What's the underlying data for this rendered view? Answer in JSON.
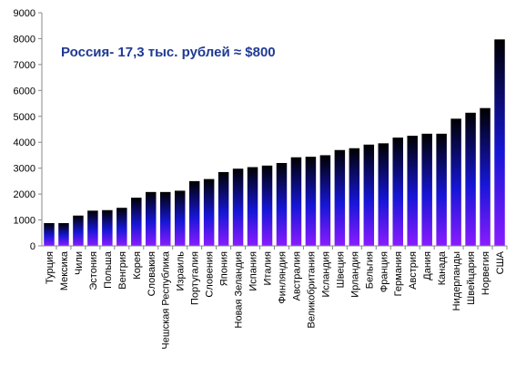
{
  "chart_data": {
    "type": "bar",
    "title": "",
    "xlabel": "",
    "ylabel": "",
    "annotation": "Россия- 17,3 тыс. рублей ≈ $800",
    "ylim": [
      0,
      9000
    ],
    "yticks": [
      0,
      1000,
      2000,
      3000,
      4000,
      5000,
      6000,
      7000,
      8000,
      9000
    ],
    "grid": false,
    "legend": "none",
    "categories": [
      "Турция",
      "Мексика",
      "Чили",
      "Эстония",
      "Польша",
      "Венгрия",
      "Корея",
      "Словакия",
      "Чешская Республика",
      "Израиль",
      "Португалия",
      "Словения",
      "Япония",
      "Новая Зеландия",
      "Испания",
      "Италия",
      "Финляндия",
      "Австралия",
      "Великобритания",
      "Исландия",
      "Швеция",
      "Ирландия",
      "Бельгия",
      "Франция",
      "Германия",
      "Австрия",
      "Дания",
      "Канада",
      "Нидерланды",
      "Швейцария",
      "Норвегия",
      "США"
    ],
    "values": [
      880,
      880,
      1170,
      1360,
      1380,
      1470,
      1860,
      2080,
      2080,
      2130,
      2500,
      2580,
      2850,
      2980,
      3040,
      3100,
      3200,
      3420,
      3440,
      3500,
      3700,
      3770,
      3910,
      3960,
      4180,
      4250,
      4330,
      4330,
      4910,
      5140,
      5320,
      7970
    ],
    "colors": {
      "bar_top": "#000000",
      "bar_mid": "#1616d6",
      "bar_bottom": "#8a1cff",
      "axis": "#888888"
    }
  }
}
